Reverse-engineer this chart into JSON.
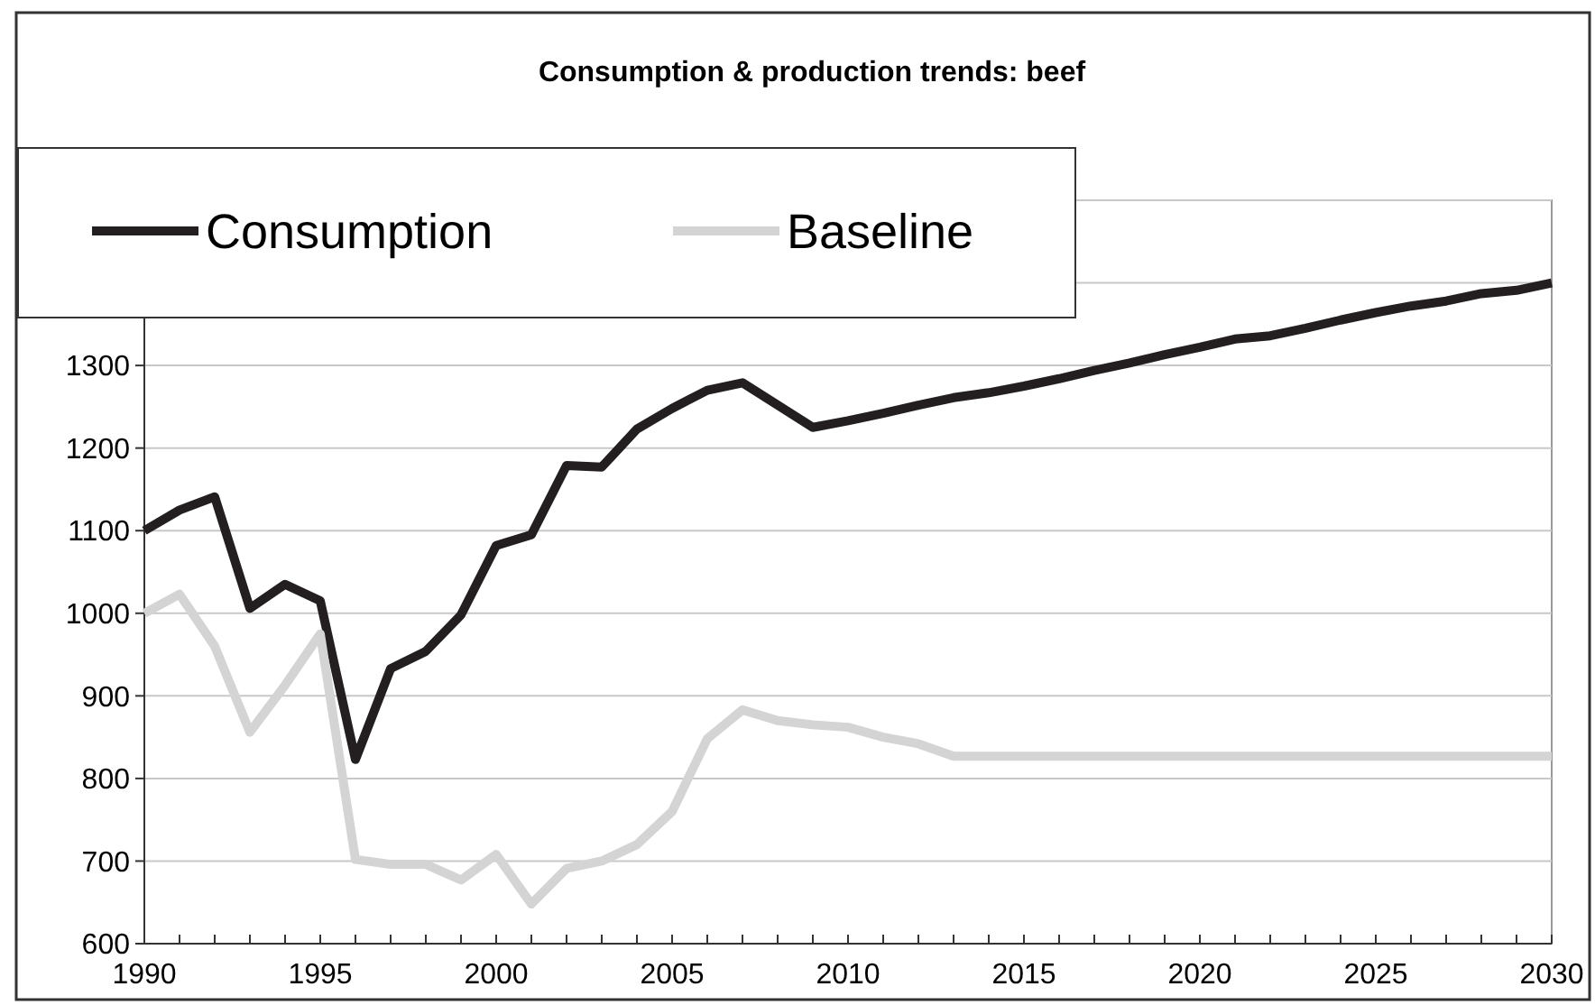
{
  "chart_data": {
    "type": "line",
    "title": "Consumption & production trends: beef",
    "x": [
      1990,
      1991,
      1992,
      1993,
      1994,
      1995,
      1996,
      1997,
      1998,
      1999,
      2000,
      2001,
      2002,
      2003,
      2004,
      2005,
      2006,
      2007,
      2008,
      2009,
      2010,
      2011,
      2012,
      2013,
      2014,
      2015,
      2016,
      2017,
      2018,
      2019,
      2020,
      2021,
      2022,
      2023,
      2024,
      2025,
      2026,
      2027,
      2028,
      2029,
      2030
    ],
    "series": [
      {
        "name": "Consumption",
        "color": "#231f20",
        "values": [
          1100,
          1125,
          1141,
          1006,
          1035,
          1015,
          823,
          933,
          954,
          998,
          1082,
          1095,
          1179,
          1177,
          1223,
          1248,
          1270,
          1279,
          1252,
          1225,
          1233,
          1242,
          1252,
          1261,
          1267,
          1275,
          1284,
          1294,
          1303,
          1313,
          1322,
          1332,
          1336,
          1345,
          1355,
          1364,
          1372,
          1378,
          1387,
          1391,
          1400
        ]
      },
      {
        "name": "Baseline",
        "color": "#d4d4d4",
        "values": [
          1000,
          1023,
          960,
          856,
          913,
          975,
          702,
          696,
          696,
          677,
          708,
          648,
          691,
          700,
          720,
          760,
          848,
          883,
          870,
          865,
          862,
          850,
          842,
          827,
          827,
          827,
          827,
          827,
          827,
          827,
          827,
          827,
          827,
          827,
          827,
          827,
          827,
          827,
          827,
          827,
          827
        ]
      }
    ],
    "xlim": [
      1990,
      2030
    ],
    "xticks": [
      1990,
      {
        "value": 1991,
        "label": null
      },
      {
        "value": 1992,
        "label": null
      },
      {
        "value": 1993,
        "label": null
      },
      {
        "value": 1994,
        "label": null
      },
      1995,
      {
        "value": 1996,
        "label": null
      },
      {
        "value": 1997,
        "label": null
      },
      {
        "value": 1998,
        "label": null
      },
      {
        "value": 1999,
        "label": null
      },
      2000,
      {
        "value": 2001,
        "label": null
      },
      {
        "value": 2002,
        "label": null
      },
      {
        "value": 2003,
        "label": null
      },
      {
        "value": 2004,
        "label": null
      },
      2005,
      {
        "value": 2006,
        "label": null
      },
      {
        "value": 2007,
        "label": null
      },
      {
        "value": 2008,
        "label": null
      },
      {
        "value": 2009,
        "label": null
      },
      2010,
      {
        "value": 2011,
        "label": null
      },
      {
        "value": 2012,
        "label": null
      },
      {
        "value": 2013,
        "label": null
      },
      {
        "value": 2014,
        "label": null
      },
      2015,
      {
        "value": 2016,
        "label": null
      },
      {
        "value": 2017,
        "label": null
      },
      {
        "value": 2018,
        "label": null
      },
      {
        "value": 2019,
        "label": null
      },
      2020,
      {
        "value": 2021,
        "label": null
      },
      {
        "value": 2022,
        "label": null
      },
      {
        "value": 2023,
        "label": null
      },
      {
        "value": 2024,
        "label": null
      },
      2025,
      {
        "value": 2026,
        "label": null
      },
      {
        "value": 2027,
        "label": null
      },
      {
        "value": 2028,
        "label": null
      },
      {
        "value": 2029,
        "label": null
      },
      2030
    ],
    "ylim": [
      600,
      1500
    ],
    "yticks": [
      600,
      700,
      800,
      900,
      1000,
      1100,
      1200,
      1300,
      {
        "value": 1400,
        "label": null
      },
      {
        "value": 1500,
        "label": null
      }
    ],
    "grid": "y",
    "legend": "top left",
    "marker": "none",
    "line_style": "solid"
  }
}
